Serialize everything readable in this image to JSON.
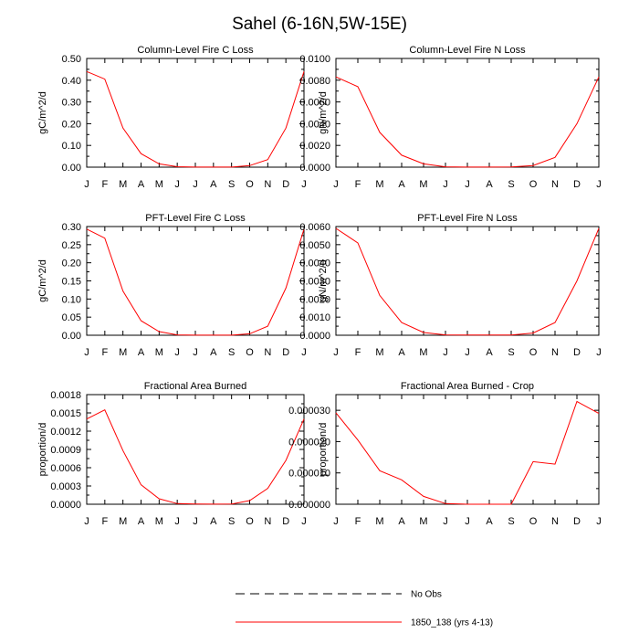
{
  "figure_title": "Sahel (6-16N,5W-15E)",
  "legend": {
    "items": [
      {
        "label": "No Obs",
        "style": "dashed",
        "color": "#000000"
      },
      {
        "label": "1850_138 (yrs 4-13)",
        "style": "solid",
        "color": "#ff0000"
      }
    ]
  },
  "colors": {
    "series_line": "#ff0000",
    "axes": "#000000",
    "background": "#ffffff"
  },
  "chart_data": [
    {
      "type": "line",
      "title": "Column-Level Fire C Loss",
      "ylabel": "gC/m^2/d",
      "xlabel": "",
      "categories": [
        "J",
        "F",
        "M",
        "A",
        "M",
        "J",
        "J",
        "A",
        "S",
        "O",
        "N",
        "D",
        "J"
      ],
      "yticks": [
        "0.00",
        "0.10",
        "0.20",
        "0.30",
        "0.40",
        "0.50"
      ],
      "ylim": [
        0,
        0.5
      ],
      "series": [
        {
          "name": "1850_138 (yrs 4-13)",
          "values": [
            0.44,
            0.405,
            0.18,
            0.062,
            0.015,
            0.002,
            0.0005,
            0.0003,
            0.0005,
            0.007,
            0.035,
            0.18,
            0.44
          ]
        }
      ]
    },
    {
      "type": "line",
      "title": "Column-Level Fire N Loss",
      "ylabel": "gN/m^2/d",
      "xlabel": "",
      "categories": [
        "J",
        "F",
        "M",
        "A",
        "M",
        "J",
        "J",
        "A",
        "S",
        "O",
        "N",
        "D",
        "J"
      ],
      "yticks": [
        "0.0000",
        "0.0020",
        "0.0040",
        "0.0060",
        "0.0080",
        "0.0100"
      ],
      "ylim": [
        0,
        0.01
      ],
      "series": [
        {
          "name": "1850_138 (yrs 4-13)",
          "values": [
            0.0083,
            0.0074,
            0.0032,
            0.0011,
            0.0003,
            3e-05,
            1e-05,
            1e-05,
            2e-05,
            0.00015,
            0.0009,
            0.004,
            0.0083
          ]
        }
      ]
    },
    {
      "type": "line",
      "title": "PFT-Level Fire C Loss",
      "ylabel": "gC/m^2/d",
      "xlabel": "",
      "categories": [
        "J",
        "F",
        "M",
        "A",
        "M",
        "J",
        "J",
        "A",
        "S",
        "O",
        "N",
        "D",
        "J"
      ],
      "yticks": [
        "0.00",
        "0.05",
        "0.10",
        "0.15",
        "0.20",
        "0.25",
        "0.30"
      ],
      "ylim": [
        0,
        0.3
      ],
      "series": [
        {
          "name": "1850_138 (yrs 4-13)",
          "values": [
            0.293,
            0.268,
            0.122,
            0.04,
            0.01,
            0.001,
            0.0003,
            0.0002,
            0.0003,
            0.004,
            0.025,
            0.13,
            0.293
          ]
        }
      ]
    },
    {
      "type": "line",
      "title": "PFT-Level Fire N Loss",
      "ylabel": "gN/m^2/d",
      "xlabel": "",
      "categories": [
        "J",
        "F",
        "M",
        "A",
        "M",
        "J",
        "J",
        "A",
        "S",
        "O",
        "N",
        "D",
        "J"
      ],
      "yticks": [
        "0.0000",
        "0.0010",
        "0.0020",
        "0.0030",
        "0.0040",
        "0.0050",
        "0.0060"
      ],
      "ylim": [
        0,
        0.006
      ],
      "series": [
        {
          "name": "1850_138 (yrs 4-13)",
          "values": [
            0.0059,
            0.0051,
            0.0022,
            0.0007,
            0.00015,
            2e-05,
            1e-05,
            1e-05,
            1e-05,
            0.00012,
            0.0007,
            0.003,
            0.0059
          ]
        }
      ]
    },
    {
      "type": "line",
      "title": "Fractional Area Burned",
      "ylabel": "proportion/d",
      "xlabel": "",
      "categories": [
        "J",
        "F",
        "M",
        "A",
        "M",
        "J",
        "J",
        "A",
        "S",
        "O",
        "N",
        "D",
        "J"
      ],
      "yticks": [
        "0.0000",
        "0.0003",
        "0.0006",
        "0.0009",
        "0.0012",
        "0.0015",
        "0.0018"
      ],
      "ylim": [
        0,
        0.0018
      ],
      "series": [
        {
          "name": "1850_138 (yrs 4-13)",
          "values": [
            0.0014,
            0.00155,
            0.00088,
            0.00032,
            9e-05,
            1e-05,
            3e-06,
            2e-06,
            3e-06,
            6e-05,
            0.00026,
            0.00072,
            0.0014
          ]
        }
      ]
    },
    {
      "type": "line",
      "title": "Fractional Area Burned - Crop",
      "ylabel": "proportion/d",
      "xlabel": "",
      "categories": [
        "J",
        "F",
        "M",
        "A",
        "M",
        "J",
        "J",
        "A",
        "S",
        "O",
        "N",
        "D",
        "J"
      ],
      "yticks": [
        "0.000000",
        "0.000010",
        "0.000020",
        "0.000030"
      ],
      "ylim": [
        0,
        3.5e-05
      ],
      "series": [
        {
          "name": "1850_138 (yrs 4-13)",
          "values": [
            2.92e-05,
            2.05e-05,
            1.07e-05,
            7.8e-06,
            2.5e-06,
            2e-07,
            0.0,
            0.0,
            0.0,
            1.36e-05,
            1.28e-05,
            3.28e-05,
            2.9e-05
          ]
        }
      ]
    }
  ]
}
